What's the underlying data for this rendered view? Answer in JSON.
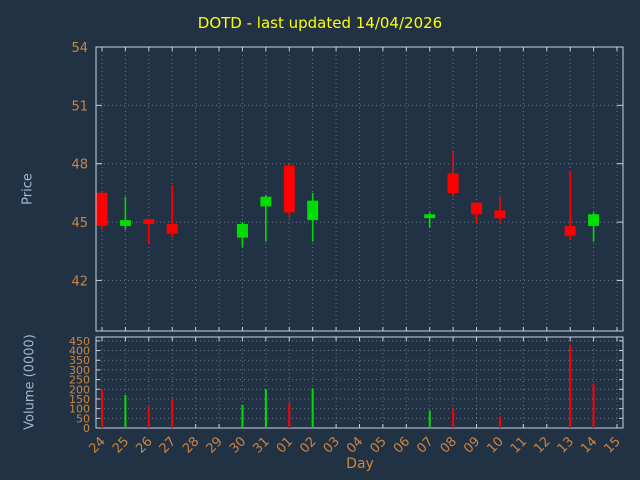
{
  "title": "DOTD - last updated 14/04/2026",
  "colors": {
    "background": "#213245",
    "axis": "#c6d2de",
    "grid": "#8b9bb0",
    "tick_label": "#cd853f",
    "title": "#ffff00",
    "axis_label": "#9fb9d0",
    "up": "#00dd00",
    "down": "#ff0000"
  },
  "chart_data": {
    "type": "candlestick",
    "title": "DOTD - last updated 14/04/2026",
    "xlabel": "Day",
    "grid": true,
    "price_axis": {
      "label": "Price",
      "ticks": [
        42,
        45,
        48,
        51,
        54
      ],
      "range": [
        39.4,
        54
      ]
    },
    "volume_axis": {
      "label": "Volume (0000)",
      "ticks": [
        0,
        50,
        100,
        150,
        200,
        250,
        300,
        350,
        400,
        450
      ],
      "range": [
        0,
        470
      ]
    },
    "categories": [
      "24",
      "25",
      "26",
      "27",
      "28",
      "29",
      "30",
      "31",
      "01",
      "02",
      "03",
      "04",
      "05",
      "06",
      "07",
      "08",
      "09",
      "10",
      "11",
      "12",
      "13",
      "14",
      "15"
    ],
    "candles": [
      {
        "day": "24",
        "open": 46.5,
        "high": 46.6,
        "low": 44.6,
        "close": 44.8
      },
      {
        "day": "25",
        "open": 44.8,
        "high": 46.3,
        "low": 44.6,
        "close": 45.1
      },
      {
        "day": "26",
        "open": 45.15,
        "high": 45.2,
        "low": 43.9,
        "close": 44.9
      },
      {
        "day": "27",
        "open": 44.9,
        "high": 46.9,
        "low": 44.2,
        "close": 44.4
      },
      {
        "day": "30",
        "open": 44.2,
        "high": 45.0,
        "low": 43.7,
        "close": 44.9
      },
      {
        "day": "31",
        "open": 45.8,
        "high": 46.4,
        "low": 44.0,
        "close": 46.3
      },
      {
        "day": "01",
        "open": 47.9,
        "high": 48.0,
        "low": 45.2,
        "close": 45.5
      },
      {
        "day": "02",
        "open": 45.1,
        "high": 46.5,
        "low": 44.0,
        "close": 46.1
      },
      {
        "day": "07",
        "open": 45.2,
        "high": 45.5,
        "low": 44.7,
        "close": 45.4
      },
      {
        "day": "08",
        "open": 47.5,
        "high": 48.6,
        "low": 46.3,
        "close": 46.5
      },
      {
        "day": "09",
        "open": 46.0,
        "high": 46.0,
        "low": 44.9,
        "close": 45.4
      },
      {
        "day": "10",
        "open": 45.6,
        "high": 46.3,
        "low": 44.9,
        "close": 45.2
      },
      {
        "day": "13",
        "open": 44.8,
        "high": 47.6,
        "low": 44.1,
        "close": 44.3
      },
      {
        "day": "14",
        "open": 44.8,
        "high": 45.5,
        "low": 44.0,
        "close": 45.4
      }
    ],
    "volumes": [
      {
        "day": "24",
        "value": 200,
        "direction": "down"
      },
      {
        "day": "25",
        "value": 170,
        "direction": "up"
      },
      {
        "day": "26",
        "value": 110,
        "direction": "down"
      },
      {
        "day": "27",
        "value": 150,
        "direction": "down"
      },
      {
        "day": "30",
        "value": 120,
        "direction": "up"
      },
      {
        "day": "31",
        "value": 200,
        "direction": "up"
      },
      {
        "day": "01",
        "value": 130,
        "direction": "down"
      },
      {
        "day": "02",
        "value": 205,
        "direction": "up"
      },
      {
        "day": "07",
        "value": 90,
        "direction": "up"
      },
      {
        "day": "08",
        "value": 100,
        "direction": "down"
      },
      {
        "day": "10",
        "value": 60,
        "direction": "down"
      },
      {
        "day": "13",
        "value": 430,
        "direction": "down"
      },
      {
        "day": "14",
        "value": 230,
        "direction": "down"
      }
    ]
  }
}
